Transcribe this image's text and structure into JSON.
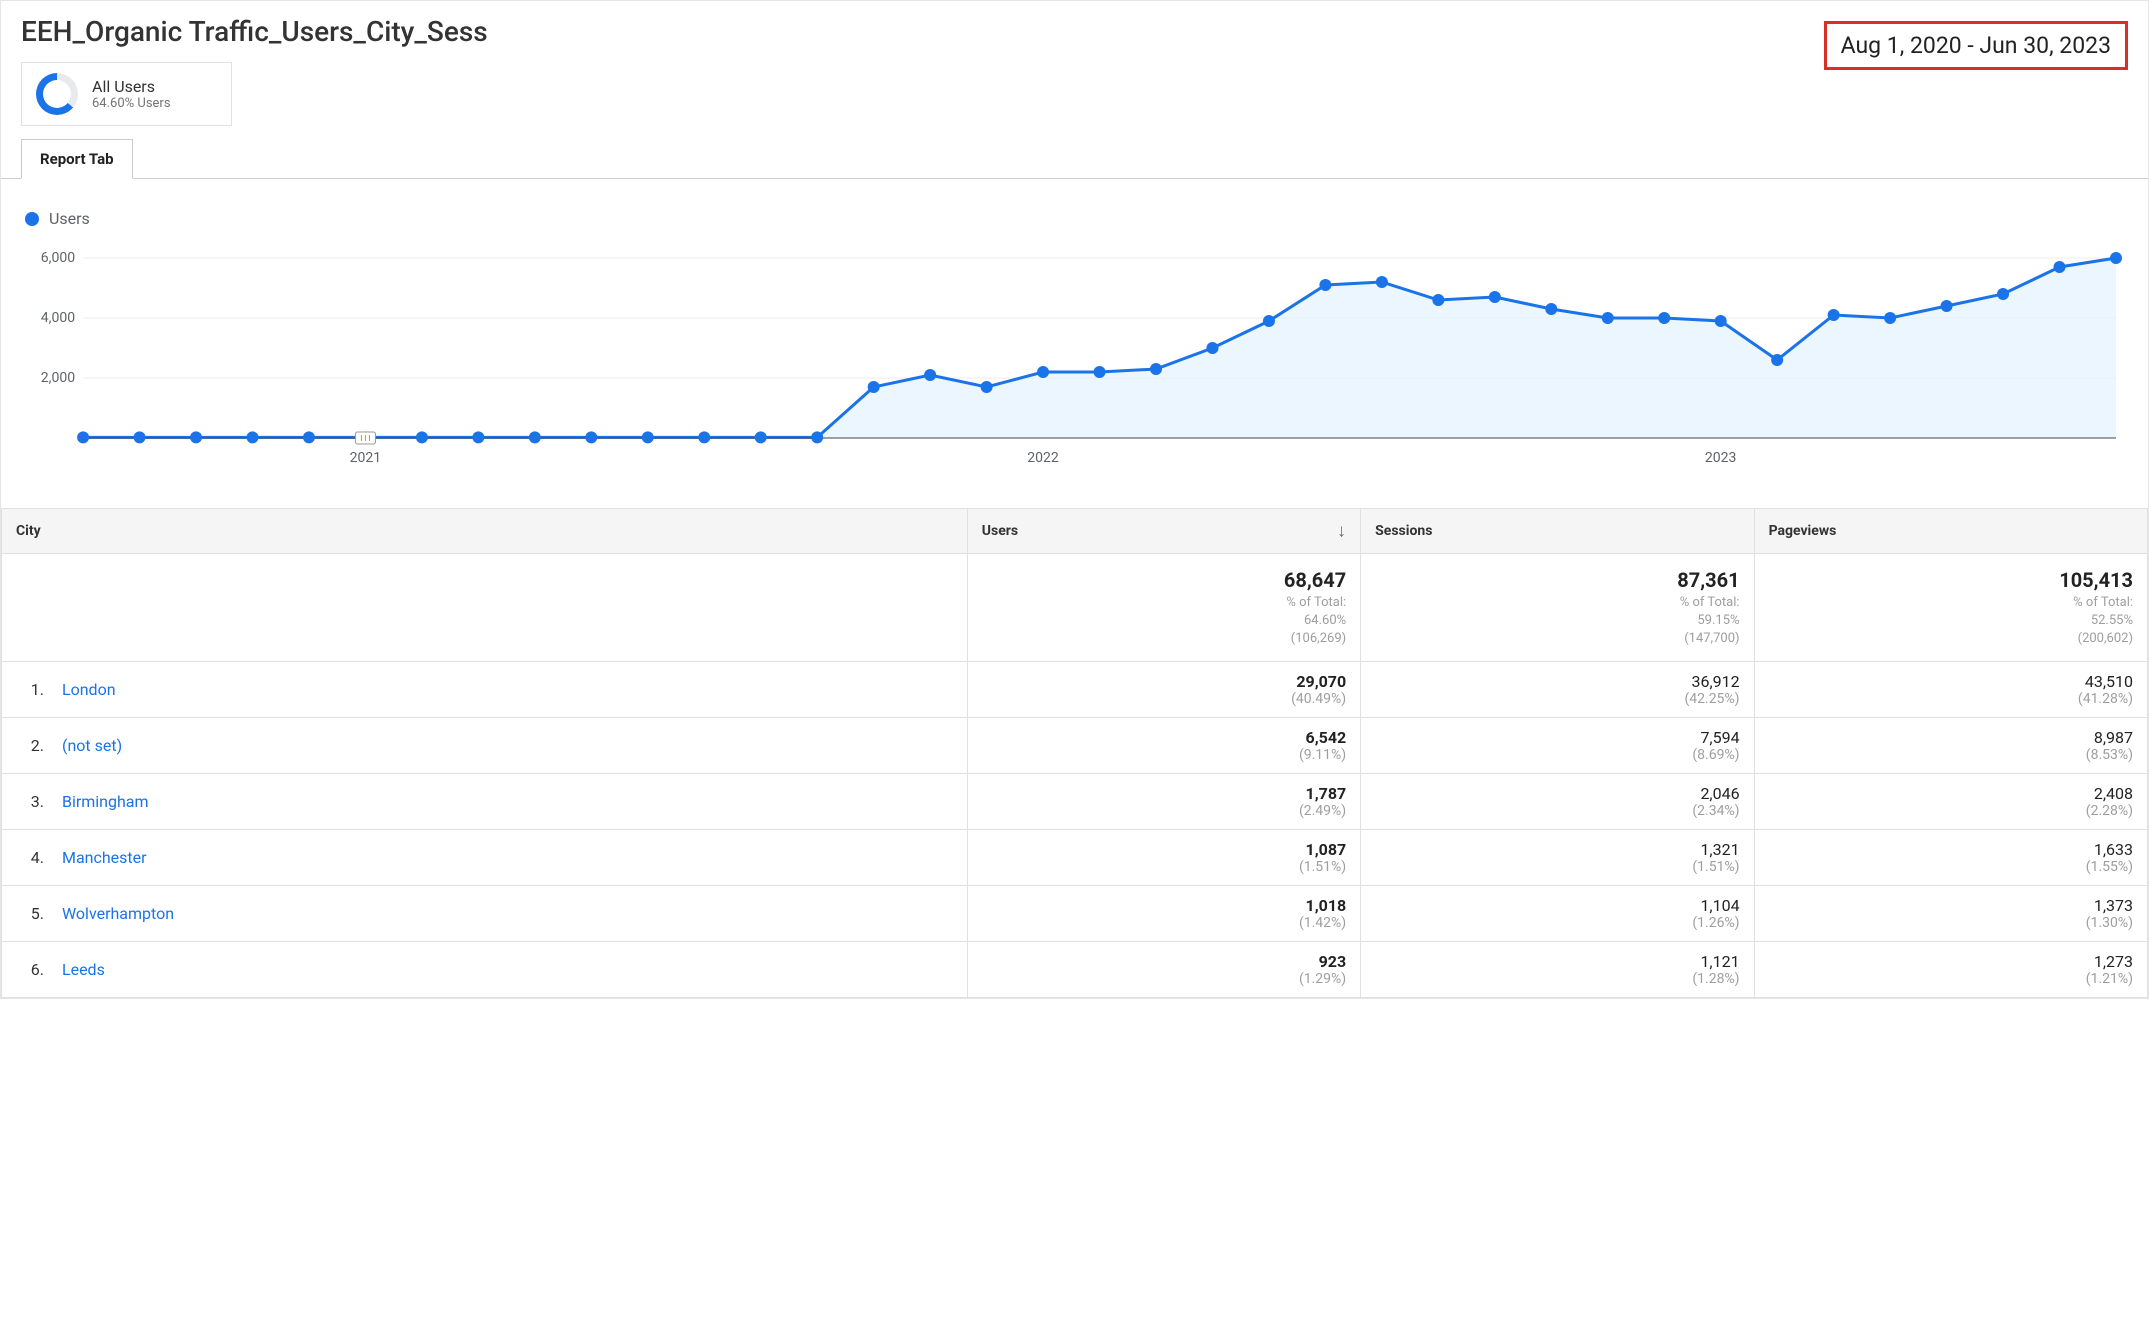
{
  "report": {
    "title": "EEH_Organic Traffic_Users_City_Sess",
    "segment": {
      "label": "All Users",
      "sub": "64.60% Users"
    },
    "date_range": "Aug 1, 2020 - Jun 30, 2023",
    "tab_label": "Report Tab"
  },
  "chart": {
    "type": "area-line",
    "legend_label": "Users",
    "line_color": "#1a73e8",
    "area_color": "#e3f2fd",
    "grid_color": "#ededed",
    "baseline_color": "#444444",
    "background_color": "#ffffff",
    "label_color": "#5f6368",
    "label_fontsize": 14,
    "point_radius": 6,
    "line_width": 3,
    "ylim": [
      0,
      6500
    ],
    "yticks": [
      2000,
      4000,
      6000
    ],
    "ytick_labels": [
      "2,000",
      "4,000",
      "6,000"
    ],
    "x_major_labels": [
      "2021",
      "2022",
      "2023"
    ],
    "x_major_indices": [
      5,
      17,
      29
    ],
    "slider_index": 5,
    "values": [
      20,
      20,
      20,
      20,
      20,
      20,
      20,
      20,
      20,
      20,
      20,
      20,
      20,
      20,
      1700,
      2100,
      1700,
      2200,
      2200,
      2300,
      3000,
      3900,
      5100,
      5200,
      4600,
      4700,
      4300,
      4000,
      4000,
      3900,
      2600,
      4100,
      4000,
      4400,
      4800,
      5700,
      6000
    ]
  },
  "table": {
    "columns": [
      "City",
      "Users",
      "Sessions",
      "Pageviews"
    ],
    "sort_col_index": 1,
    "totals": [
      {
        "value": "68,647",
        "pct_label": "% of Total:",
        "pct": "64.60%",
        "base": "(106,269)"
      },
      {
        "value": "87,361",
        "pct_label": "% of Total:",
        "pct": "59.15%",
        "base": "(147,700)"
      },
      {
        "value": "105,413",
        "pct_label": "% of Total:",
        "pct": "52.55%",
        "base": "(200,602)"
      }
    ],
    "rows": [
      {
        "rank": "1.",
        "city": "London",
        "users": {
          "v": "29,070",
          "p": "(40.49%)"
        },
        "sessions": {
          "v": "36,912",
          "p": "(42.25%)"
        },
        "pageviews": {
          "v": "43,510",
          "p": "(41.28%)"
        }
      },
      {
        "rank": "2.",
        "city": "(not set)",
        "users": {
          "v": "6,542",
          "p": "(9.11%)"
        },
        "sessions": {
          "v": "7,594",
          "p": "(8.69%)"
        },
        "pageviews": {
          "v": "8,987",
          "p": "(8.53%)"
        }
      },
      {
        "rank": "3.",
        "city": "Birmingham",
        "users": {
          "v": "1,787",
          "p": "(2.49%)"
        },
        "sessions": {
          "v": "2,046",
          "p": "(2.34%)"
        },
        "pageviews": {
          "v": "2,408",
          "p": "(2.28%)"
        }
      },
      {
        "rank": "4.",
        "city": "Manchester",
        "users": {
          "v": "1,087",
          "p": "(1.51%)"
        },
        "sessions": {
          "v": "1,321",
          "p": "(1.51%)"
        },
        "pageviews": {
          "v": "1,633",
          "p": "(1.55%)"
        }
      },
      {
        "rank": "5.",
        "city": "Wolverhampton",
        "users": {
          "v": "1,018",
          "p": "(1.42%)"
        },
        "sessions": {
          "v": "1,104",
          "p": "(1.26%)"
        },
        "pageviews": {
          "v": "1,373",
          "p": "(1.30%)"
        }
      },
      {
        "rank": "6.",
        "city": "Leeds",
        "users": {
          "v": "923",
          "p": "(1.29%)"
        },
        "sessions": {
          "v": "1,121",
          "p": "(1.28%)"
        },
        "pageviews": {
          "v": "1,273",
          "p": "(1.21%)"
        }
      }
    ]
  }
}
